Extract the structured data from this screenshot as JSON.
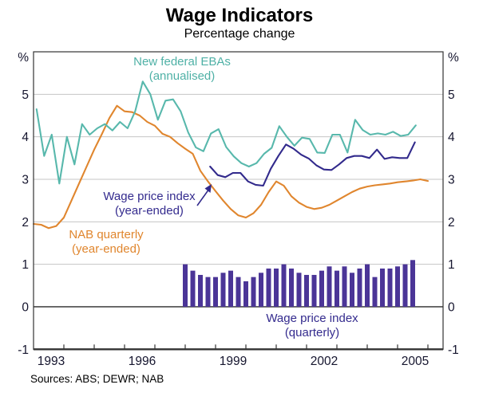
{
  "title": "Wage Indicators",
  "subtitle": "Percentage change",
  "source_note": "Sources: ABS; DEWR; NAB",
  "axes": {
    "unit_left": "%",
    "unit_right": "%",
    "ymin": -1,
    "ymax": 6,
    "y_ticks": [
      5,
      4,
      3,
      2,
      1,
      0,
      -1
    ],
    "x_domain": [
      1992.5,
      2006.0
    ],
    "x_labels": [
      {
        "label": "1993",
        "year": 1993
      },
      {
        "label": "1996",
        "year": 1996
      },
      {
        "label": "1999",
        "year": 1999
      },
      {
        "label": "2002",
        "year": 2002
      },
      {
        "label": "2005",
        "year": 2005
      }
    ]
  },
  "colors": {
    "teal_line": "#58b8ac",
    "orange_line": "#e0862e",
    "navy_line": "#322a8c",
    "bar_purple": "#4b3597",
    "gridline": "#c4c4c4",
    "zero_line": "#4a4a4a",
    "frame": "#333333",
    "axis_text": "#15152e"
  },
  "annotations": {
    "ebas": {
      "line1": "New federal EBAs",
      "line2": "(annualised)"
    },
    "wpi_year_ended": {
      "line1": "Wage price index",
      "line2": "(year-ended)"
    },
    "nab": {
      "line1": "NAB quarterly",
      "line2": "(year-ended)"
    },
    "wpi_quarterly": {
      "line1": "Wage price index",
      "line2": "(quarterly)"
    }
  },
  "chart_data": {
    "type": "combo",
    "title": "Wage Indicators",
    "subtitle": "Percentage change",
    "ylabel": "%",
    "ylim": [
      -1,
      6
    ],
    "grid": "horizontal",
    "x_unit": "year (quarterly observations)",
    "series": [
      {
        "name": "NAB quarterly (year-ended)",
        "type": "line",
        "color": "#e0862e",
        "start": 1992.5,
        "step": 0.25,
        "values": [
          1.95,
          1.93,
          1.85,
          1.9,
          2.1,
          2.5,
          2.9,
          3.3,
          3.7,
          4.06,
          4.44,
          4.73,
          4.6,
          4.58,
          4.5,
          4.35,
          4.26,
          4.07,
          4.0,
          3.85,
          3.72,
          3.6,
          3.2,
          2.95,
          2.72,
          2.5,
          2.3,
          2.15,
          2.1,
          2.2,
          2.4,
          2.7,
          2.95,
          2.85,
          2.6,
          2.45,
          2.35,
          2.3,
          2.33,
          2.4,
          2.5,
          2.6,
          2.7,
          2.78,
          2.83,
          2.86,
          2.88,
          2.9,
          2.93,
          2.95,
          2.97,
          3.0,
          2.96
        ]
      },
      {
        "name": "New federal EBAs (annualised)",
        "type": "line",
        "color": "#58b8ac",
        "start": 1992.6,
        "step": 0.25,
        "values": [
          4.65,
          3.55,
          4.05,
          2.9,
          4.0,
          3.35,
          4.3,
          4.05,
          4.2,
          4.3,
          4.15,
          4.35,
          4.2,
          4.6,
          5.3,
          5.0,
          4.4,
          4.85,
          4.88,
          4.6,
          4.1,
          3.75,
          3.66,
          4.08,
          4.18,
          3.76,
          3.54,
          3.38,
          3.3,
          3.38,
          3.6,
          3.74,
          4.25,
          4.0,
          3.79,
          3.98,
          3.95,
          3.63,
          3.62,
          4.05,
          4.05,
          3.63,
          4.4,
          4.16,
          4.05,
          4.08,
          4.05,
          4.12,
          4.02,
          4.05,
          4.27
        ]
      },
      {
        "name": "Wage price index (year-ended)",
        "type": "line",
        "color": "#322a8c",
        "start": 1998.32,
        "step": 0.25,
        "values": [
          3.3,
          3.1,
          3.05,
          3.15,
          3.15,
          2.95,
          2.87,
          2.85,
          3.25,
          3.55,
          3.82,
          3.72,
          3.58,
          3.49,
          3.33,
          3.23,
          3.22,
          3.35,
          3.5,
          3.55,
          3.55,
          3.5,
          3.7,
          3.48,
          3.52,
          3.5,
          3.5,
          3.87
        ]
      },
      {
        "name": "Wage price index (quarterly)",
        "type": "bar",
        "color": "#4b3597",
        "start": 1997.5,
        "step": 0.25,
        "values": [
          1.0,
          0.85,
          0.75,
          0.7,
          0.7,
          0.8,
          0.85,
          0.7,
          0.6,
          0.7,
          0.8,
          0.9,
          0.9,
          1.0,
          0.9,
          0.8,
          0.75,
          0.75,
          0.85,
          0.95,
          0.85,
          0.95,
          0.8,
          0.9,
          1.0,
          0.7,
          0.9,
          0.9,
          0.95,
          1.0,
          1.1
        ]
      }
    ]
  }
}
